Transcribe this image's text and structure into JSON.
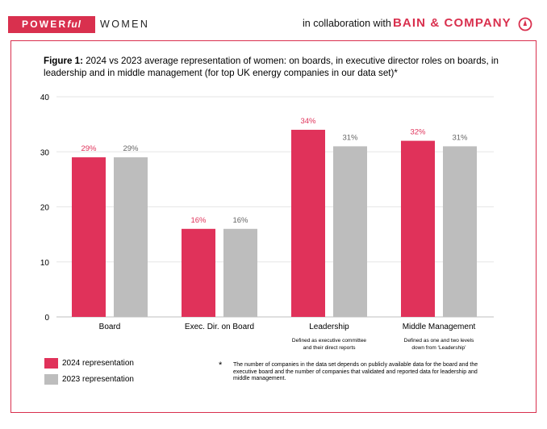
{
  "header": {
    "logo_power": "POWER",
    "logo_ful": "ful",
    "logo_women": "WOMEN",
    "collab_text": "in collaboration with",
    "partner_name": "BAIN & COMPANY",
    "brand_color": "#d9304e"
  },
  "figure": {
    "label": "Figure 1:",
    "title": "2024 vs 2023 average representation of women: on boards, in executive director roles on boards, in leadership and in middle management (for top UK energy companies in our data set)*"
  },
  "chart_data": {
    "type": "bar",
    "categories": [
      "Board",
      "Exec. Dir. on Board",
      "Leadership",
      "Middle Management"
    ],
    "category_notes": [
      "",
      "",
      "Defined as executive committee and their direct reports",
      "Defined as one and two levels down from ‘Leadership’"
    ],
    "series": [
      {
        "name": "2024 representation",
        "values": [
          29,
          16,
          34,
          32
        ],
        "labels": [
          "29%",
          "16%",
          "34%",
          "32%"
        ],
        "color": "#e0325a"
      },
      {
        "name": "2023 representation",
        "values": [
          29,
          16,
          31,
          31
        ],
        "labels": [
          "29%",
          "16%",
          "31%",
          "31%"
        ],
        "color": "#bdbdbd"
      }
    ],
    "yticks": [
      0,
      10,
      20,
      30,
      40
    ],
    "ylim": [
      0,
      40
    ],
    "grid": true,
    "legend": "bottom-left"
  },
  "legend": {
    "items": [
      {
        "label": "2024 representation",
        "color": "#e0325a"
      },
      {
        "label": "2023 representation",
        "color": "#bdbdbd"
      }
    ]
  },
  "footnote": {
    "star": "*",
    "text": "The number of companies in the data set depends on publicly available data for the board and the executive board and the number of companies that validated and reported data for leadership and middle management."
  }
}
